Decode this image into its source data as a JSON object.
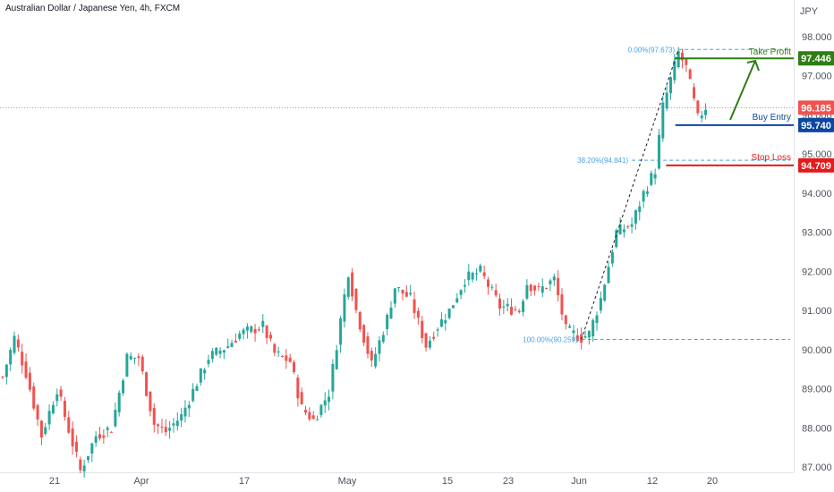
{
  "chart_data": {
    "type": "candlestick",
    "title": "Australian Dollar / Japanese Yen, 4h, FXCM",
    "currency": "JPY",
    "ylim": [
      87.0,
      98.4
    ],
    "y_ticks": [
      {
        "value": 98,
        "label": "98.000"
      },
      {
        "value": 97,
        "label": "97.000"
      },
      {
        "value": 96,
        "label": "96.000"
      },
      {
        "value": 95,
        "label": "95.000"
      },
      {
        "value": 94,
        "label": "94.000"
      },
      {
        "value": 93,
        "label": "93.000"
      },
      {
        "value": 92,
        "label": "92.000"
      },
      {
        "value": 91,
        "label": "91.000"
      },
      {
        "value": 90,
        "label": "90.000"
      },
      {
        "value": 89,
        "label": "89.000"
      },
      {
        "value": 88,
        "label": "88.000"
      },
      {
        "value": 87,
        "label": "87.000"
      }
    ],
    "x_ticks": [
      {
        "index": 0,
        "label": "21"
      },
      {
        "index": 1,
        "label": "Apr"
      },
      {
        "index": 2,
        "label": "17"
      },
      {
        "index": 3,
        "label": "May"
      },
      {
        "index": 4,
        "label": "15"
      },
      {
        "index": 5,
        "label": "23"
      },
      {
        "index": 6,
        "label": "Jun"
      },
      {
        "index": 7,
        "label": "12"
      },
      {
        "index": 8,
        "label": "20"
      }
    ],
    "price_path": [
      {
        "t": 0.0,
        "v": 89.3
      },
      {
        "t": 1.5,
        "v": 90.3
      },
      {
        "t": 3.0,
        "v": 89.4
      },
      {
        "t": 5.0,
        "v": 87.8
      },
      {
        "t": 7.0,
        "v": 89.0
      },
      {
        "t": 10.0,
        "v": 86.9
      },
      {
        "t": 12.0,
        "v": 87.8
      },
      {
        "t": 14.0,
        "v": 88.0
      },
      {
        "t": 16.0,
        "v": 89.8
      },
      {
        "t": 17.5,
        "v": 89.8
      },
      {
        "t": 19.5,
        "v": 88.1
      },
      {
        "t": 21.0,
        "v": 87.9
      },
      {
        "t": 23.0,
        "v": 88.3
      },
      {
        "t": 26.5,
        "v": 89.8
      },
      {
        "t": 29.0,
        "v": 90.1
      },
      {
        "t": 30.5,
        "v": 90.4
      },
      {
        "t": 33.5,
        "v": 90.6
      },
      {
        "t": 35.0,
        "v": 89.9
      },
      {
        "t": 37.0,
        "v": 89.7
      },
      {
        "t": 38.5,
        "v": 88.5
      },
      {
        "t": 40.0,
        "v": 88.2
      },
      {
        "t": 42.0,
        "v": 88.9
      },
      {
        "t": 44.5,
        "v": 92.0
      },
      {
        "t": 45.5,
        "v": 91.0
      },
      {
        "t": 47.5,
        "v": 89.6
      },
      {
        "t": 49.5,
        "v": 90.8
      },
      {
        "t": 50.5,
        "v": 91.6
      },
      {
        "t": 52.5,
        "v": 91.3
      },
      {
        "t": 54.5,
        "v": 90.1
      },
      {
        "t": 56.0,
        "v": 90.6
      },
      {
        "t": 57.5,
        "v": 91.0
      },
      {
        "t": 59.5,
        "v": 91.8
      },
      {
        "t": 61.5,
        "v": 92.0
      },
      {
        "t": 64.0,
        "v": 91.1
      },
      {
        "t": 66.5,
        "v": 91.0
      },
      {
        "t": 67.5,
        "v": 91.7
      },
      {
        "t": 69.0,
        "v": 91.5
      },
      {
        "t": 71.0,
        "v": 91.8
      },
      {
        "t": 72.5,
        "v": 90.5
      },
      {
        "t": 74.5,
        "v": 90.3
      },
      {
        "t": 75.5,
        "v": 90.4
      },
      {
        "t": 77.0,
        "v": 91.3
      },
      {
        "t": 79.0,
        "v": 93.0
      },
      {
        "t": 81.0,
        "v": 93.2
      },
      {
        "t": 82.5,
        "v": 94.0
      },
      {
        "t": 84.0,
        "v": 94.6
      },
      {
        "t": 85.0,
        "v": 96.2
      },
      {
        "t": 87.0,
        "v": 97.6
      },
      {
        "t": 88.0,
        "v": 97.2
      },
      {
        "t": 89.5,
        "v": 95.9
      },
      {
        "t": 90.5,
        "v": 96.2
      }
    ],
    "fibonacci": [
      {
        "label": "0.00%(97.673)",
        "value": 97.673
      },
      {
        "label": "38.20%(94.841)",
        "value": 94.841
      },
      {
        "label": "100.00%(90.259)",
        "value": 90.259
      }
    ],
    "levels": [
      {
        "name": "Take Profit",
        "value": 97.446,
        "price_label": "97.446",
        "color": "#2e7d15"
      },
      {
        "name": "Buy Entry",
        "value": 95.74,
        "price_label": "95.740",
        "color": "#0d47a1"
      },
      {
        "name": "Stop Loss",
        "value": 94.709,
        "price_label": "94.709",
        "color": "#e51a1a"
      }
    ],
    "current_price": {
      "value": 96.185,
      "label": "96.185",
      "color": "#ef5350"
    },
    "colors": {
      "up": "#26a69a",
      "down": "#ef5350",
      "fib": "#4aa3df",
      "axis_text": "#50535e"
    }
  }
}
